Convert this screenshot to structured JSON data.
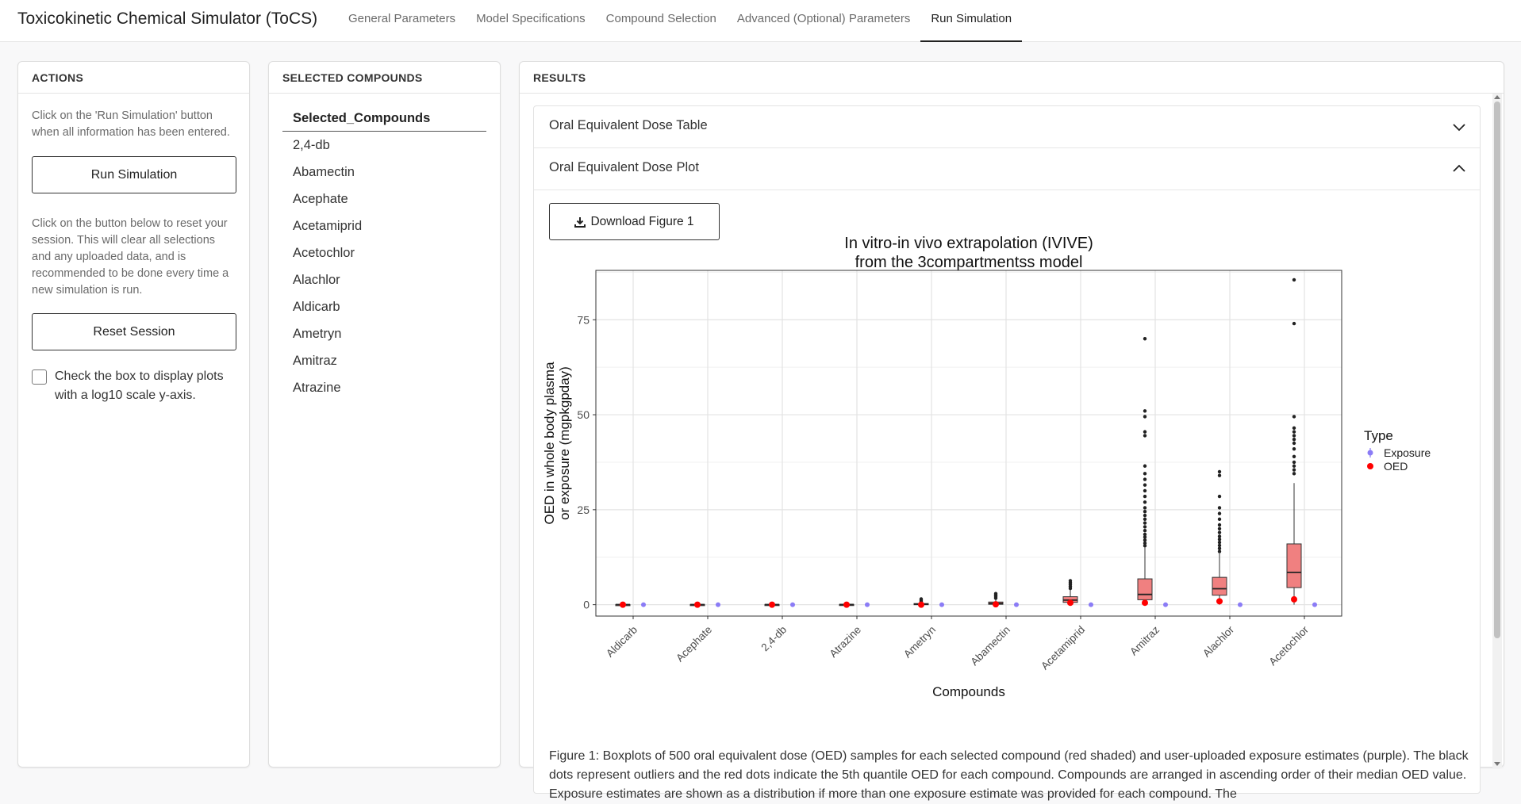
{
  "app": {
    "title": "Toxicokinetic Chemical Simulator (ToCS)",
    "tabs": [
      "General Parameters",
      "Model Specifications",
      "Compound Selection",
      "Advanced (Optional) Parameters",
      "Run Simulation"
    ],
    "active_tab": "Run Simulation"
  },
  "actions": {
    "header": "ACTIONS",
    "run_help": "Click on the 'Run Simulation' button when all information has been entered.",
    "run_button": "Run Simulation",
    "reset_help": "Click on the button below to reset your session. This will clear all selections and any uploaded data, and is recommended to be done every time a new simulation is run.",
    "reset_button": "Reset Session",
    "log_checkbox_label": "Check the box to display plots with a log10 scale y-axis.",
    "log_checkbox_checked": false
  },
  "compounds": {
    "header": "SELECTED COMPOUNDS",
    "column_header": "Selected_Compounds",
    "items": [
      "2,4-db",
      "Abamectin",
      "Acephate",
      "Acetamiprid",
      "Acetochlor",
      "Alachlor",
      "Aldicarb",
      "Ametryn",
      "Amitraz",
      "Atrazine"
    ]
  },
  "results": {
    "header": "RESULTS",
    "accordion": [
      {
        "label": "Oral Equivalent Dose Table",
        "expanded": false
      },
      {
        "label": "Oral Equivalent Dose Plot",
        "expanded": true
      }
    ],
    "download_button": "Download Figure 1",
    "caption": "Figure 1: Boxplots of 500 oral equivalent dose (OED) samples for each selected compound (red shaded) and user-uploaded exposure estimates (purple). The black dots represent outliers and the red dots indicate the 5th quantile OED for each compound. Compounds are arranged in ascending order of their median OED value. Exposure estimates are shown as a distribution if more than one exposure estimate was provided for each compound. The"
  },
  "colors": {
    "box_fill": "#f08080",
    "oed_point": "#ff0000",
    "exposure_point": "#8b7cf6",
    "outlier": "#222222"
  },
  "chart_data": {
    "type": "box",
    "title": "In vitro-in vivo extrapolation (IVIVE)\nfrom the 3compartmentss model",
    "xlabel": "Compounds",
    "ylabel": "OED in whole body plasma\nor exposure (mgpkgpday)",
    "ylim": [
      -3,
      88
    ],
    "yticks": [
      0,
      25,
      50,
      75
    ],
    "grid": true,
    "legend": {
      "title": "Type",
      "position": "right",
      "entries": [
        "Exposure",
        "OED"
      ]
    },
    "categories": [
      "Aldicarb",
      "Acephate",
      "2,4-db",
      "Atrazine",
      "Ametryn",
      "Abamectin",
      "Acetamiprid",
      "Amitraz",
      "Alachlor",
      "Acetochlor"
    ],
    "boxes": [
      {
        "q1": 0.0,
        "median": 0.02,
        "q3": 0.05,
        "whisker_low": 0.0,
        "whisker_high": 0.1,
        "outliers": []
      },
      {
        "q1": 0.0,
        "median": 0.03,
        "q3": 0.06,
        "whisker_low": 0.0,
        "whisker_high": 0.12,
        "outliers": []
      },
      {
        "q1": 0.0,
        "median": 0.03,
        "q3": 0.07,
        "whisker_low": 0.0,
        "whisker_high": 0.15,
        "outliers": []
      },
      {
        "q1": 0.0,
        "median": 0.04,
        "q3": 0.08,
        "whisker_low": 0.0,
        "whisker_high": 0.15,
        "outliers": []
      },
      {
        "q1": 0.05,
        "median": 0.15,
        "q3": 0.3,
        "whisker_low": 0.0,
        "whisker_high": 0.7,
        "outliers": [
          0.9,
          1.2,
          1.5
        ]
      },
      {
        "q1": 0.1,
        "median": 0.3,
        "q3": 0.7,
        "whisker_low": 0.0,
        "whisker_high": 1.5,
        "outliers": [
          1.7,
          2.0,
          2.3,
          2.6,
          2.9
        ]
      },
      {
        "q1": 0.6,
        "median": 1.2,
        "q3": 2.1,
        "whisker_low": 0.0,
        "whisker_high": 4.0,
        "outliers": [
          4.3,
          4.8,
          5.3,
          5.8,
          6.3
        ]
      },
      {
        "q1": 1.3,
        "median": 2.7,
        "q3": 6.8,
        "whisker_low": 0.0,
        "whisker_high": 15.0,
        "outliers": [
          15.5,
          16.2,
          17.0,
          17.8,
          18.5,
          19.5,
          20.5,
          21.5,
          22.5,
          23.5,
          24.5,
          25.5,
          27.0,
          28.5,
          30.0,
          31.5,
          33.0,
          34.5,
          36.5,
          44.5,
          45.5,
          49.5,
          51.0,
          70.0
        ]
      },
      {
        "q1": 2.5,
        "median": 4.2,
        "q3": 7.2,
        "whisker_low": 0.0,
        "whisker_high": 13.5,
        "outliers": [
          14.0,
          14.8,
          15.6,
          16.4,
          17.2,
          18.0,
          19.0,
          20.0,
          21.0,
          22.5,
          24.0,
          25.5,
          28.5,
          34.0,
          35.0
        ]
      },
      {
        "q1": 4.5,
        "median": 8.5,
        "q3": 16.0,
        "whisker_low": 0.0,
        "whisker_high": 32.0,
        "outliers": [
          34.5,
          35.5,
          36.5,
          37.5,
          39.0,
          41.0,
          42.5,
          43.5,
          44.5,
          45.5,
          46.5,
          49.5,
          74.0,
          85.5
        ]
      }
    ],
    "oed": [
      0.0,
      0.0,
      0.0,
      0.0,
      0.0,
      0.1,
      0.5,
      0.5,
      0.9,
      1.4
    ],
    "exposure": [
      0.0,
      0.0,
      0.0,
      0.0,
      0.0,
      0.0,
      0.0,
      0.0,
      0.0,
      0.0
    ]
  }
}
